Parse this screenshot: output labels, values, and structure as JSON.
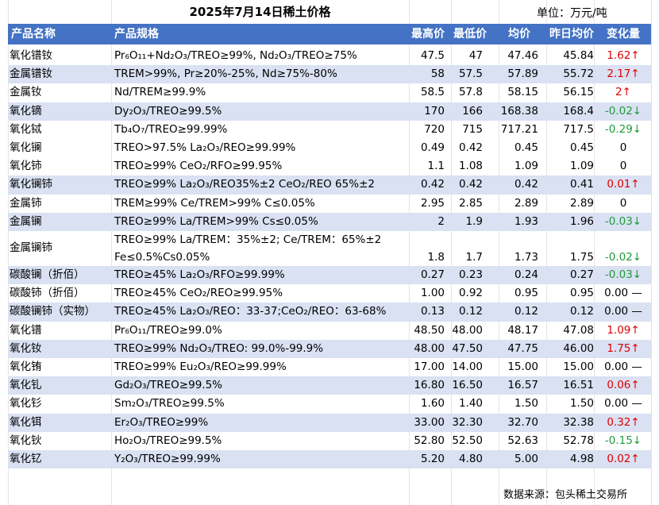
{
  "title": "2025年7月14日稀土价格",
  "unit": "单位：万元/吨",
  "columns": [
    "产品名称",
    "产品规格",
    "最高价",
    "最低价",
    "均价",
    "昨日均价",
    "变化量"
  ],
  "rows": [
    {
      "name": "氧化镨钕",
      "spec": "Pr₆O₁₁+Nd₂O₃/TREO≥99%, Nd₂O₃/TREO≥75%",
      "high": "47.5",
      "low": "47",
      "avg": "47.46",
      "prev": "45.84",
      "change": "1.62↑",
      "dir": "up"
    },
    {
      "name": "金属镨钕",
      "spec": "TREM>99%, Pr≥20%-25%, Nd≥75%-80%",
      "high": "58",
      "low": "57.5",
      "avg": "57.89",
      "prev": "55.72",
      "change": "2.17↑",
      "dir": "up"
    },
    {
      "name": "金属钕",
      "spec": "Nd/TREM≥99.9%",
      "high": "58.5",
      "low": "57.8",
      "avg": "58.15",
      "prev": "56.15",
      "change": "2↑",
      "dir": "up"
    },
    {
      "name": "氧化镝",
      "spec": "Dy₂O₃/TREO≥99.5%",
      "high": "170",
      "low": "166",
      "avg": "168.38",
      "prev": "168.4",
      "change": "-0.02↓",
      "dir": "down"
    },
    {
      "name": "氧化铽",
      "spec": "Tb₄O₇/TREO≥99.99%",
      "high": "720",
      "low": "715",
      "avg": "717.21",
      "prev": "717.5",
      "change": "-0.29↓",
      "dir": "down"
    },
    {
      "name": "氧化镧",
      "spec": "TREO>97.5% La₂O₃/REO≥99.99%",
      "high": "0.49",
      "low": "0.42",
      "avg": "0.45",
      "prev": "0.45",
      "change": "0",
      "dir": "flat"
    },
    {
      "name": "氧化铈",
      "spec": "TREO≥99% CeO₂/RFO≥99.95%",
      "high": "1.1",
      "low": "1.08",
      "avg": "1.09",
      "prev": "1.09",
      "change": "0",
      "dir": "flat"
    },
    {
      "name": "氧化镧铈",
      "spec": "TREO≥99% La₂O₃/REO35%±2 CeO₂/REO 65%±2",
      "high": "0.42",
      "low": "0.42",
      "avg": "0.42",
      "prev": "0.41",
      "change": "0.01↑",
      "dir": "up"
    },
    {
      "name": "金属铈",
      "spec": "TREM≥99% Ce/TREM>99% C≤0.05%",
      "high": "2.95",
      "low": "2.85",
      "avg": "2.89",
      "prev": "2.89",
      "change": "0",
      "dir": "flat"
    },
    {
      "name": "金属镧",
      "spec": "TREO≥99% La/TREM>99% Cs≤0.05%",
      "high": "2",
      "low": "1.9",
      "avg": "1.93",
      "prev": "1.96",
      "change": "-0.03↓",
      "dir": "down"
    },
    {
      "name": "金属镧铈",
      "spec": "TREO≥99% La/TREM：35%±2; Ce/TREM：65%±2",
      "spec2": "Fe≤0.5%Cs0.05%",
      "high": "1.8",
      "low": "1.7",
      "avg": "1.73",
      "prev": "1.75",
      "change": "-0.02↓",
      "dir": "down"
    },
    {
      "name": "碳酸镧（折佰）",
      "spec": "TREO≥45% La₂O₃/RFO≥99.99%",
      "high": "0.27",
      "low": "0.23",
      "avg": "0.24",
      "prev": "0.27",
      "change": "-0.03↓",
      "dir": "down"
    },
    {
      "name": "碳酸铈（折佰）",
      "spec": "TREO≥45% CeO₂/REO≥99.95%",
      "high": "1.00",
      "low": "0.92",
      "avg": "0.95",
      "prev": "0.95",
      "change": "0.00 —",
      "dir": "flat"
    },
    {
      "name": "碳酸镧铈（实物）",
      "spec": "TREO≥45% La₂O₃/REO：33-37;CeO₂/REO：63-68%",
      "high": "0.13",
      "low": "0.12",
      "avg": "0.12",
      "prev": "0.12",
      "change": "0.00 —",
      "dir": "flat"
    },
    {
      "name": "氧化镨",
      "spec": "Pr₆O₁₁/TREO≥99.0%",
      "high": "48.50",
      "low": "48.00",
      "avg": "48.17",
      "prev": "47.08",
      "change": "1.09↑",
      "dir": "up"
    },
    {
      "name": "氧化钕",
      "spec": "TREO≥99% Nd₂O₃/TREO: 99.0%-99.9%",
      "high": "48.00",
      "low": "47.50",
      "avg": "47.75",
      "prev": "46.00",
      "change": "1.75↑",
      "dir": "up"
    },
    {
      "name": "氧化铕",
      "spec": "TREO≥99% Eu₂O₃/REO≥99.99%",
      "high": "17.00",
      "low": "14.00",
      "avg": "15.00",
      "prev": "15.00",
      "change": "0.00 —",
      "dir": "flat"
    },
    {
      "name": "氧化钆",
      "spec": "Gd₂O₃/TREO≥99.5%",
      "high": "16.80",
      "low": "16.50",
      "avg": "16.57",
      "prev": "16.51",
      "change": "0.06↑",
      "dir": "up"
    },
    {
      "name": "氧化钐",
      "spec": "Sm₂O₃/TREO≥99.5%",
      "high": "1.60",
      "low": "1.40",
      "avg": "1.50",
      "prev": "1.50",
      "change": "0.00 —",
      "dir": "flat"
    },
    {
      "name": "氧化铒",
      "spec": "Er₂O₃/TREO≥99%",
      "high": "33.00",
      "low": "32.30",
      "avg": "32.70",
      "prev": "32.38",
      "change": "0.32↑",
      "dir": "up"
    },
    {
      "name": "氧化钬",
      "spec": "Ho₂O₃/TREO≥99.5%",
      "high": "52.80",
      "low": "52.50",
      "avg": "52.63",
      "prev": "52.78",
      "change": "-0.15↓",
      "dir": "down"
    },
    {
      "name": "氧化钇",
      "spec": "Y₂O₃/TREO≥99.99%",
      "high": "5.20",
      "low": "4.80",
      "avg": "5.00",
      "prev": "4.98",
      "change": "0.02↑",
      "dir": "up"
    }
  ],
  "footer": "数据来源：包头稀土交易所"
}
